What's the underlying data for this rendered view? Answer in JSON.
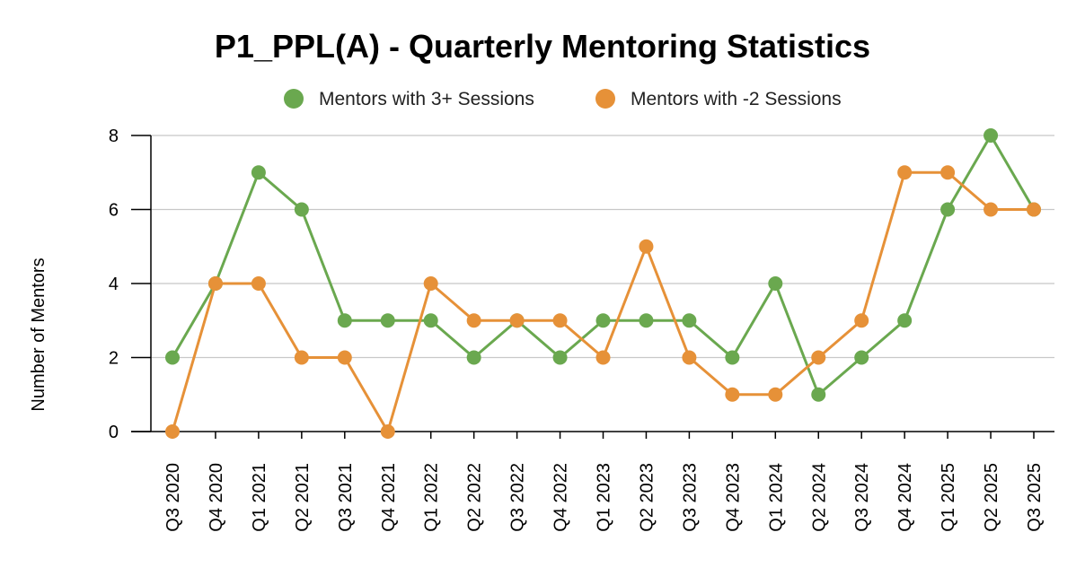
{
  "chart_data": {
    "type": "line",
    "title": "P1_PPL(A) - Quarterly Mentoring Statistics",
    "xlabel": "",
    "ylabel": "Number of Mentors",
    "ylim": [
      0,
      8
    ],
    "yticks": [
      0,
      2,
      4,
      6,
      8
    ],
    "grid": true,
    "legend_position": "top-center",
    "categories": [
      "Q3 2020",
      "Q4 2020",
      "Q1 2021",
      "Q2 2021",
      "Q3 2021",
      "Q4 2021",
      "Q1 2022",
      "Q2 2022",
      "Q3 2022",
      "Q4 2022",
      "Q1 2023",
      "Q2 2023",
      "Q3 2023",
      "Q4 2023",
      "Q1 2024",
      "Q2 2024",
      "Q3 2024",
      "Q4 2024",
      "Q1 2025",
      "Q2 2025",
      "Q3 2025"
    ],
    "series": [
      {
        "name": "Mentors with 3+ Sessions",
        "color": "#6aa84f",
        "values": [
          2,
          4,
          7,
          6,
          3,
          3,
          3,
          2,
          3,
          2,
          3,
          3,
          3,
          2,
          4,
          1,
          2,
          3,
          6,
          8,
          6
        ]
      },
      {
        "name": "Mentors with -2 Sessions",
        "color": "#e69138",
        "values": [
          0,
          4,
          4,
          2,
          2,
          0,
          4,
          3,
          3,
          3,
          2,
          5,
          2,
          1,
          1,
          2,
          3,
          7,
          7,
          6,
          6
        ]
      }
    ]
  }
}
